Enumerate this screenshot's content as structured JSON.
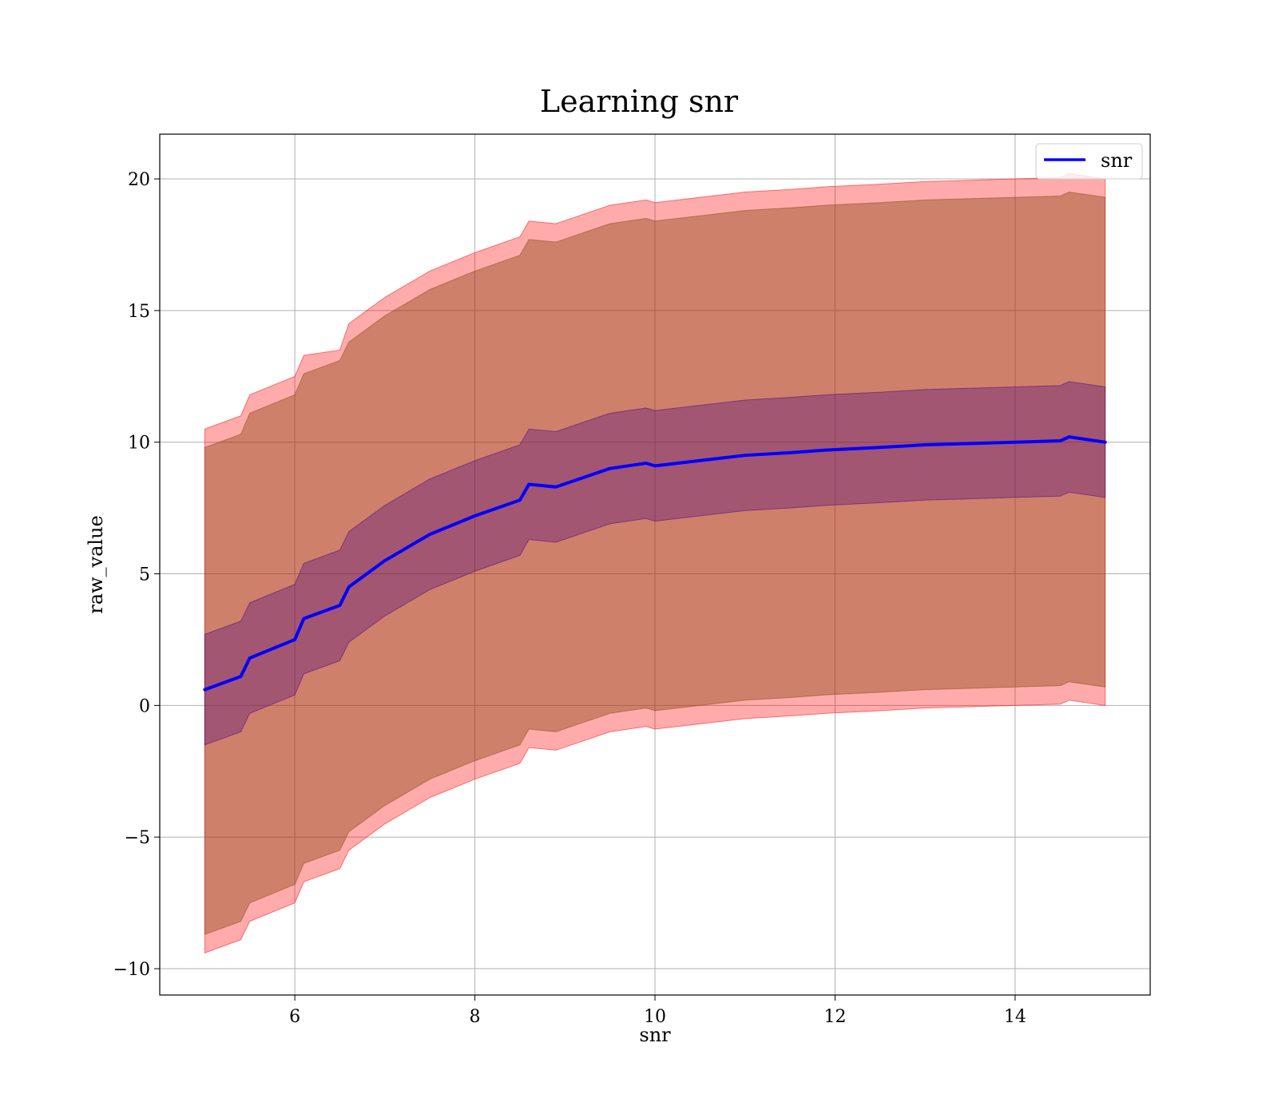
{
  "chart_data": {
    "type": "line",
    "title": "Learning snr",
    "xlabel": "snr",
    "ylabel": "raw_value",
    "xlim": [
      4.5,
      15.5
    ],
    "ylim": [
      -11,
      21.7
    ],
    "grid": true,
    "legend": {
      "position": "top-right",
      "entries": [
        "snr"
      ]
    },
    "x_ticks": [
      {
        "value": 6,
        "label": "6"
      },
      {
        "value": 8,
        "label": "8"
      },
      {
        "value": 10,
        "label": "10"
      },
      {
        "value": 12,
        "label": "12"
      },
      {
        "value": 14,
        "label": "14"
      }
    ],
    "y_ticks": [
      {
        "value": -10,
        "label": "−10"
      },
      {
        "value": -5,
        "label": "−5"
      },
      {
        "value": 0,
        "label": "0"
      },
      {
        "value": 5,
        "label": "5"
      },
      {
        "value": 10,
        "label": "10"
      },
      {
        "value": 15,
        "label": "15"
      },
      {
        "value": 20,
        "label": "20"
      }
    ],
    "x": [
      5.0,
      5.4,
      5.5,
      6.0,
      6.1,
      6.5,
      6.6,
      7.0,
      7.5,
      8.0,
      8.5,
      8.6,
      8.9,
      9.5,
      9.9,
      10.0,
      10.5,
      11.0,
      11.5,
      11.9,
      12.5,
      13.0,
      13.5,
      14.0,
      14.5,
      14.6,
      15.0
    ],
    "series": [
      {
        "name": "snr",
        "color": "#0000ff",
        "values": [
          0.6,
          1.1,
          1.8,
          2.5,
          3.3,
          3.8,
          4.5,
          5.5,
          6.5,
          7.2,
          7.8,
          8.4,
          8.3,
          9.0,
          9.2,
          9.1,
          9.3,
          9.5,
          9.6,
          9.7,
          9.8,
          9.9,
          9.95,
          10.0,
          10.05,
          10.2,
          10.0
        ]
      }
    ],
    "bands": [
      {
        "color": "#ff0000",
        "opacity": 0.33,
        "upper": [
          10.5,
          11.0,
          11.8,
          12.5,
          13.3,
          13.5,
          14.5,
          15.5,
          16.5,
          17.2,
          17.8,
          18.4,
          18.3,
          19.0,
          19.2,
          19.1,
          19.3,
          19.5,
          19.6,
          19.7,
          19.8,
          19.9,
          19.95,
          20.0,
          20.05,
          20.2,
          20.0
        ],
        "lower": [
          -9.4,
          -8.9,
          -8.2,
          -7.5,
          -6.7,
          -6.2,
          -5.5,
          -4.5,
          -3.5,
          -2.8,
          -2.2,
          -1.6,
          -1.7,
          -1.0,
          -0.8,
          -0.9,
          -0.7,
          -0.5,
          -0.4,
          -0.3,
          -0.2,
          -0.1,
          -0.05,
          0.0,
          0.05,
          0.2,
          0.0
        ]
      },
      {
        "color": "#8b4513",
        "opacity": 0.42,
        "upper": [
          9.8,
          10.3,
          11.1,
          11.8,
          12.6,
          13.1,
          13.8,
          14.8,
          15.8,
          16.5,
          17.1,
          17.7,
          17.6,
          18.3,
          18.5,
          18.4,
          18.6,
          18.8,
          18.9,
          19.0,
          19.1,
          19.2,
          19.25,
          19.3,
          19.35,
          19.5,
          19.3
        ],
        "lower": [
          -8.7,
          -8.2,
          -7.5,
          -6.8,
          -6.0,
          -5.5,
          -4.8,
          -3.8,
          -2.8,
          -2.1,
          -1.5,
          -0.9,
          -1.0,
          -0.3,
          -0.1,
          -0.2,
          0.0,
          0.2,
          0.3,
          0.4,
          0.5,
          0.6,
          0.65,
          0.7,
          0.75,
          0.9,
          0.7
        ]
      },
      {
        "color": "#4b0082",
        "opacity": 0.33,
        "upper": [
          2.7,
          3.2,
          3.9,
          4.6,
          5.4,
          5.9,
          6.6,
          7.6,
          8.6,
          9.3,
          9.9,
          10.5,
          10.4,
          11.1,
          11.3,
          11.2,
          11.4,
          11.6,
          11.7,
          11.8,
          11.9,
          12.0,
          12.05,
          12.1,
          12.15,
          12.3,
          12.1
        ],
        "lower": [
          -1.5,
          -1.0,
          -0.3,
          0.4,
          1.2,
          1.7,
          2.4,
          3.4,
          4.4,
          5.1,
          5.7,
          6.3,
          6.2,
          6.9,
          7.1,
          7.0,
          7.2,
          7.4,
          7.5,
          7.6,
          7.7,
          7.8,
          7.85,
          7.9,
          7.95,
          8.1,
          7.9
        ]
      }
    ]
  }
}
